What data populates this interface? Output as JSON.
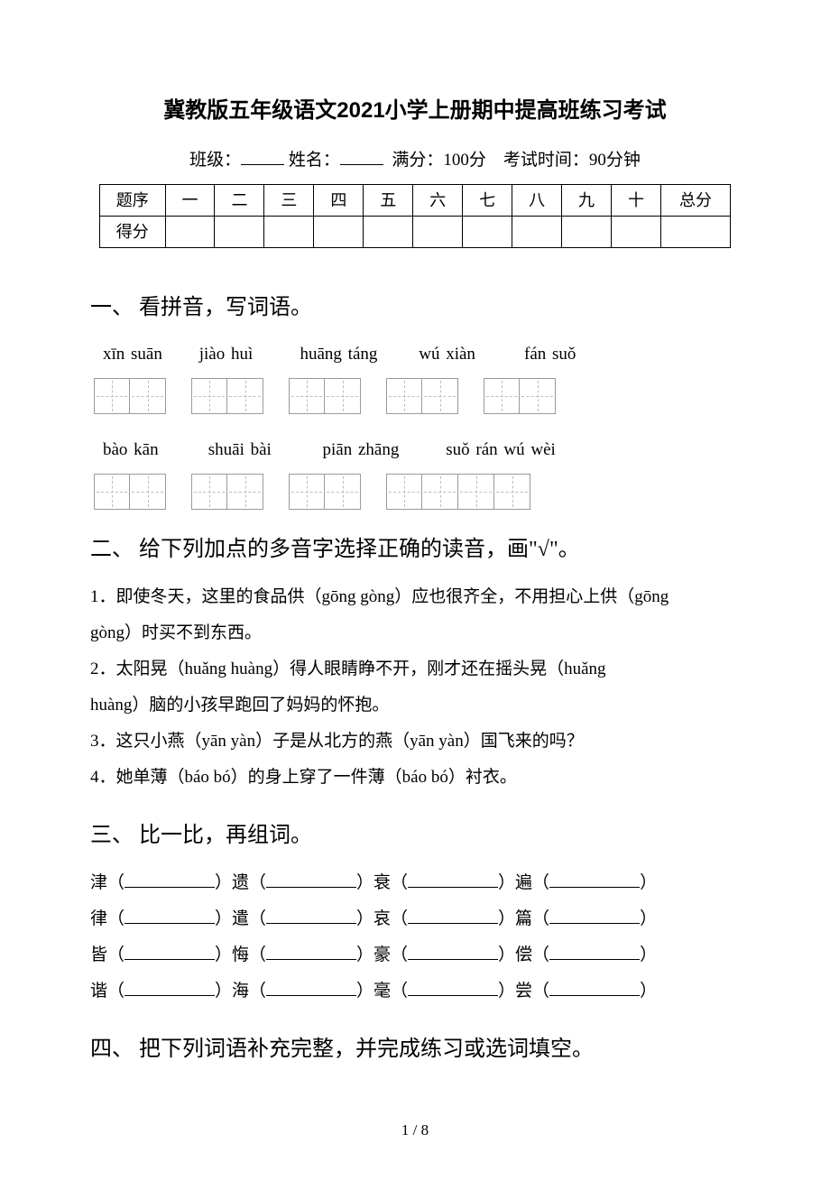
{
  "title": "冀教版五年级语文2021小学上册期中提高班练习考试",
  "info": {
    "class_label": "班级：",
    "name_label": "姓名：",
    "full_label": "满分：",
    "full_val": "100分",
    "time_label": "考试时间：",
    "time_val": "90分钟"
  },
  "score_table": {
    "row1_label": "题序",
    "row2_label": "得分",
    "cols": [
      "一",
      "二",
      "三",
      "四",
      "五",
      "六",
      "七",
      "八",
      "九",
      "十"
    ],
    "total": "总分"
  },
  "sec1": {
    "heading": "一、 看拼音，写词语。",
    "row1_pinyin": [
      "xīn suān",
      "jiào huì",
      "huāng táng",
      "wú xiàn",
      "fán suǒ"
    ],
    "row1_cells": [
      2,
      2,
      2,
      2,
      2
    ],
    "row2_pinyin": [
      "bào kān",
      "shuāi bài",
      "piān zhāng",
      "suǒ rán wú wèi"
    ],
    "row2_cells": [
      2,
      2,
      2,
      4
    ]
  },
  "sec2": {
    "heading": "二、 给下列加点的多音字选择正确的读音，画\"√\"。",
    "q1a": "1．即使冬天，这里的食品供（gōng gòng）应也很齐全，不用担心上供（gōng",
    "q1b": "gòng）时买不到东西。",
    "q2a": "2．太阳晃（huǎng huàng）得人眼睛睁不开，刚才还在摇头晃（huǎng",
    "q2b": "huàng）脑的小孩早跑回了妈妈的怀抱。",
    "q3": "3．这只小燕（yān yàn）子是从北方的燕（yān yàn）国飞来的吗？",
    "q4": "4．她单薄（báo bó）的身上穿了一件薄（báo bó）衬衣。"
  },
  "sec3": {
    "heading": "三、 比一比，再组词。",
    "rows": [
      [
        "津（",
        "）遗（",
        "）衰（",
        "）遍（",
        "）"
      ],
      [
        "律（",
        "）遣（",
        "）哀（",
        "）篇（",
        "）"
      ],
      [
        "皆（",
        "）悔（",
        "）豪（",
        "）偿（",
        "）"
      ],
      [
        "谐（",
        "）海（",
        "）毫（",
        "）尝（",
        "）"
      ]
    ]
  },
  "sec4": {
    "heading": "四、 把下列词语补充完整，并完成练习或选词填空。"
  },
  "page_num": "1 / 8",
  "colors": {
    "text": "#000000",
    "bg": "#ffffff",
    "grid_border": "#9a9a9a",
    "grid_dash": "#bdbdbd"
  }
}
